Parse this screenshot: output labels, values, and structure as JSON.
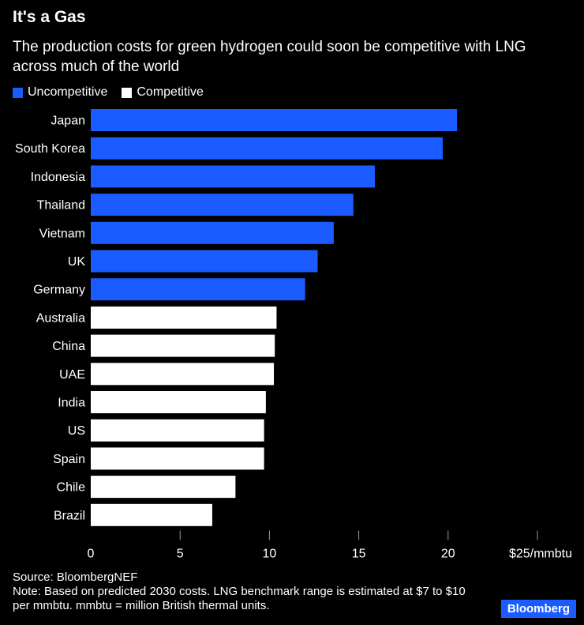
{
  "title": "It's a Gas",
  "subtitle": "The production costs for green hydrogen could soon be competitive with LNG across much of the world",
  "legend": {
    "uncompetitive": {
      "label": "Uncompetitive",
      "color": "#1a5cff"
    },
    "competitive": {
      "label": "Competitive",
      "color": "#ffffff"
    }
  },
  "chart_data": {
    "type": "bar",
    "orientation": "horizontal",
    "categories": [
      "Japan",
      "South Korea",
      "Indonesia",
      "Thailand",
      "Vietnam",
      "UK",
      "Germany",
      "Australia",
      "China",
      "UAE",
      "India",
      "US",
      "Spain",
      "Chile",
      "Brazil"
    ],
    "values": [
      20.5,
      19.7,
      15.9,
      14.7,
      13.6,
      12.7,
      12.0,
      10.4,
      10.3,
      10.25,
      9.8,
      9.7,
      9.7,
      8.1,
      6.8
    ],
    "status": [
      "Uncompetitive",
      "Uncompetitive",
      "Uncompetitive",
      "Uncompetitive",
      "Uncompetitive",
      "Uncompetitive",
      "Uncompetitive",
      "Competitive",
      "Competitive",
      "Competitive",
      "Competitive",
      "Competitive",
      "Competitive",
      "Competitive",
      "Competitive"
    ],
    "xlim": [
      0,
      25
    ],
    "xticks": [
      0,
      5,
      10,
      15,
      20,
      25
    ],
    "xtick_labels": [
      "0",
      "5",
      "10",
      "15",
      "20",
      "$25/mmbtu"
    ],
    "legend_position": "top-left",
    "grid": false
  },
  "footer": {
    "source": "Source: BloombergNEF",
    "note": "Note: Based on predicted 2030 costs. LNG benchmark range is estimated at $7 to $10 per mmbtu. mmbtu = million British thermal units."
  },
  "brand": "Bloomberg"
}
